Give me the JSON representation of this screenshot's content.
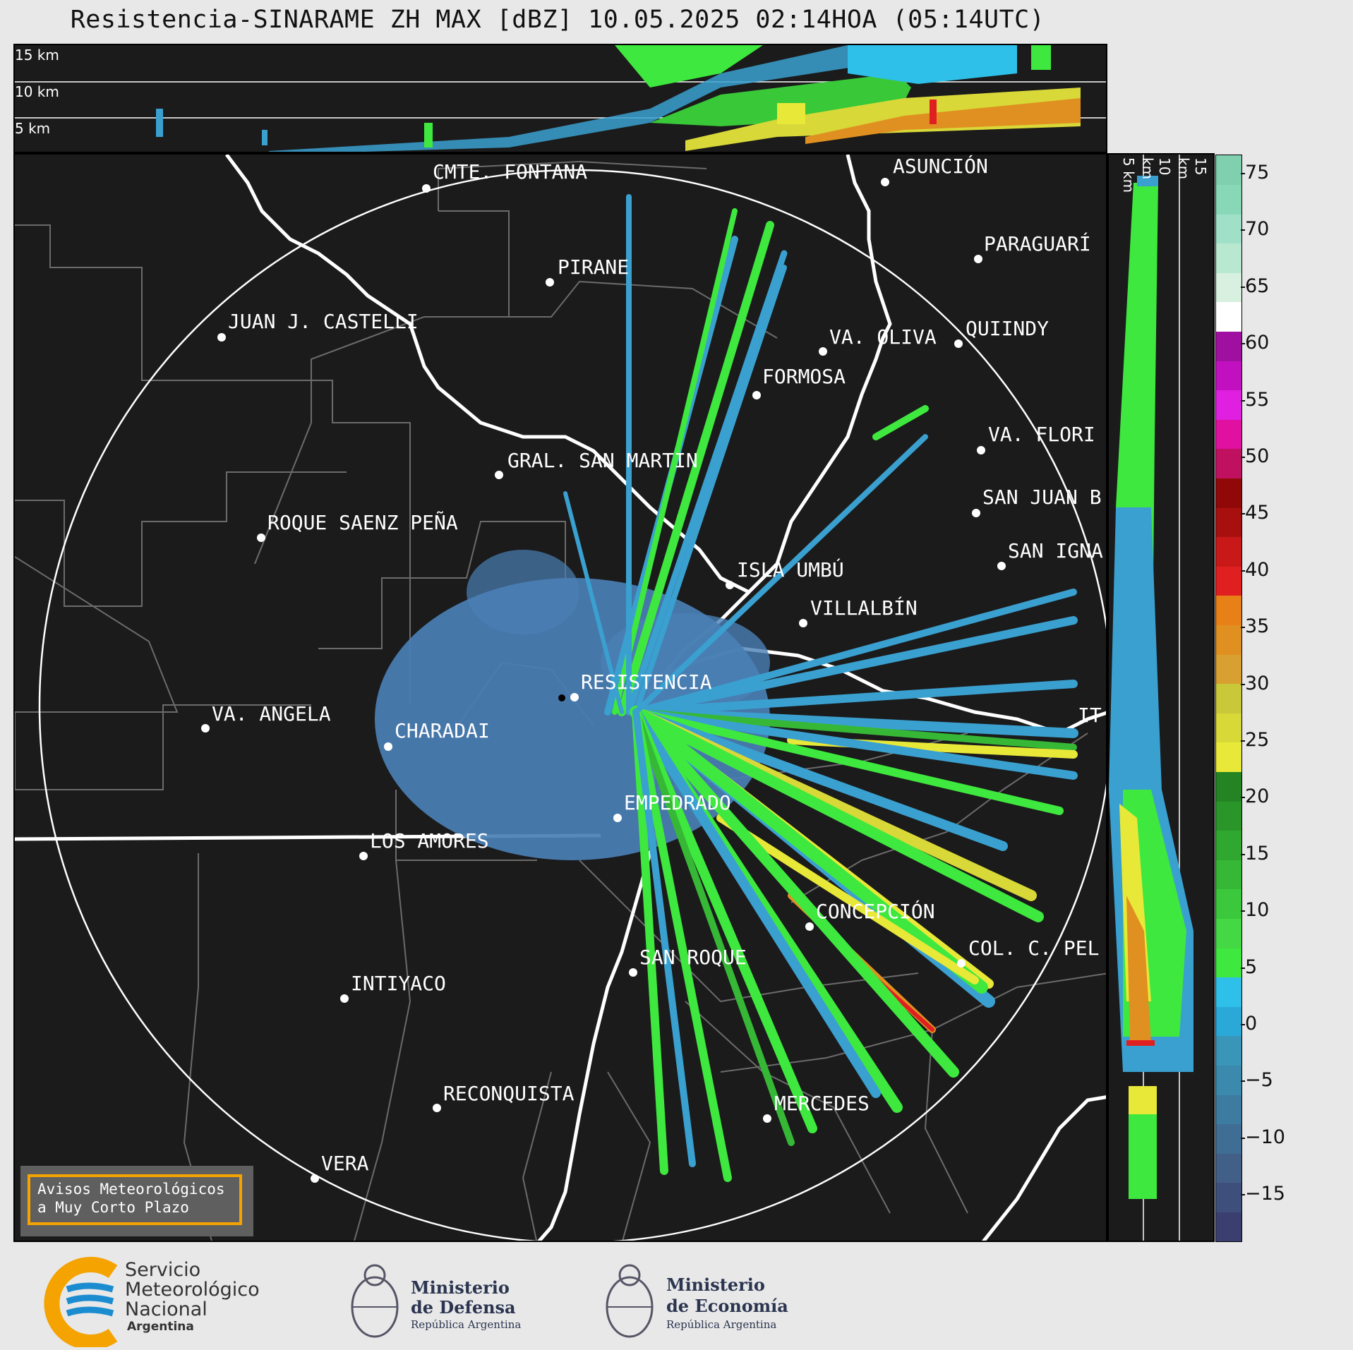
{
  "title": "Resistencia-SINARAME ZH MAX [dBZ] 10.05.2025 02:14HOA (05:14UTC)",
  "top_panel": {
    "altitude_labels": [
      "15 km",
      "10 km",
      "5 km"
    ]
  },
  "side_panel": {
    "altitude_labels": [
      "5 km",
      "10 km",
      "15 km"
    ]
  },
  "colorbar": {
    "ticks": [
      "75",
      "70",
      "65",
      "60",
      "55",
      "50",
      "45",
      "40",
      "35",
      "30",
      "25",
      "20",
      "15",
      "10",
      "5",
      "0",
      "−5",
      "−10",
      "−15"
    ],
    "colors": [
      "#3a3f70",
      "#3e4f7c",
      "#425f88",
      "#3f6d94",
      "#3d7ca0",
      "#3b89ac",
      "#3a96b8",
      "#2aa8d8",
      "#2ec0e8",
      "#3ee83e",
      "#44d844",
      "#3cc83c",
      "#36b836",
      "#30a830",
      "#2a962a",
      "#248424",
      "#e8e838",
      "#d8d838",
      "#c8c838",
      "#d8a030",
      "#e09020",
      "#e88018",
      "#e02020",
      "#c81818",
      "#a81010",
      "#900808",
      "#c01060",
      "#e010a0",
      "#e020e0",
      "#c010c0",
      "#a010a0",
      "#ffffff",
      "#d8f0e0",
      "#b8e8d0",
      "#a0e0c8",
      "#88d8b8",
      "#80d0b0"
    ]
  },
  "cities": [
    {
      "name": "CMTE. FONTANA"
    },
    {
      "name": "ASUNCIÓN"
    },
    {
      "name": "PIRANE"
    },
    {
      "name": "PARAGUARÍ"
    },
    {
      "name": "JUAN J. CASTELLI"
    },
    {
      "name": "VA. OLIVA"
    },
    {
      "name": "QUIINDY"
    },
    {
      "name": "FORMOSA"
    },
    {
      "name": "VA. FLORI"
    },
    {
      "name": "GRAL. SAN MARTIN"
    },
    {
      "name": "SAN JUAN B"
    },
    {
      "name": "ROQUE SAENZ PEÑA"
    },
    {
      "name": "SAN IGNA"
    },
    {
      "name": "ISLA UMBÚ"
    },
    {
      "name": "VILLALBÍN"
    },
    {
      "name": "RESISTENCIA"
    },
    {
      "name": "VA. ANGELA"
    },
    {
      "name": "CHARADAI"
    },
    {
      "name": "IT"
    },
    {
      "name": "EMPEDRADO"
    },
    {
      "name": "LOS AMORES"
    },
    {
      "name": "CONCEPCIÓN"
    },
    {
      "name": "COL. C. PEL"
    },
    {
      "name": "SAN ROQUE"
    },
    {
      "name": "INTIYACO"
    },
    {
      "name": "RECONQUISTA"
    },
    {
      "name": "MERCEDES"
    },
    {
      "name": "VERA"
    }
  ],
  "warning_box": {
    "line1": "Avisos Meteorológicos",
    "line2": "a Muy Corto Plazo"
  },
  "footer": {
    "smn": {
      "line1": "Servicio",
      "line2": "Meteorológico",
      "line3": "Nacional",
      "line4": "Argentina"
    },
    "defensa": {
      "line1": "Ministerio",
      "line2": "de Defensa",
      "sub": "República Argentina"
    },
    "economia": {
      "line1": "Ministerio",
      "line2": "de Economía",
      "sub": "República Argentina"
    }
  }
}
